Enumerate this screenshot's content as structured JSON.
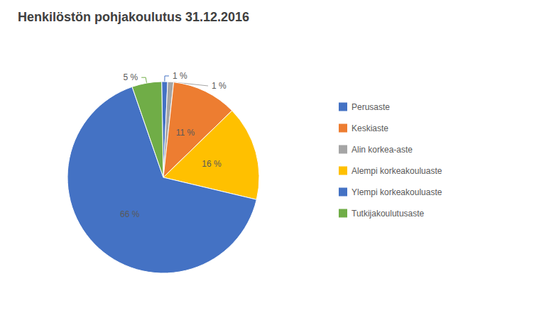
{
  "chart_data": {
    "type": "pie",
    "title": "Henkilöstön pohjakoulutus 31.12.2016",
    "categories": [
      "Perusaste",
      "Alin korkea-aste",
      "Keskiaste",
      "Alempi korkeakouluaste",
      "Ylempi korkeakouluaste",
      "Tutkijakoulutusaste"
    ],
    "values": [
      1,
      1,
      11,
      16,
      66,
      5
    ],
    "value_labels": [
      "1 %",
      "1 %",
      "11 %",
      "16 %",
      "66 %",
      "5 %"
    ],
    "colors": [
      "#4472c4",
      "#a5a5a5",
      "#ed7d31",
      "#ffc000",
      "#4472c4",
      "#70ad47"
    ],
    "legend_labels": [
      "Perusaste",
      "Keskiaste",
      "Alin korkea-aste",
      "Alempi korkeakouluaste",
      "Ylempi korkeakouluaste",
      "Tutkijakoulutusaste"
    ],
    "legend": "right",
    "data_labels": true
  }
}
